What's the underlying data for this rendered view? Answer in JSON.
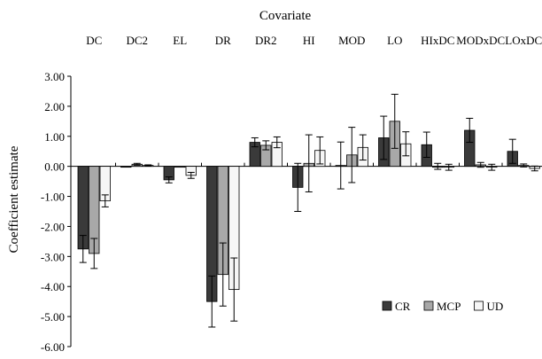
{
  "chart_data": {
    "type": "bar",
    "title": "Covariate",
    "ylabel": "Coefficient estimate",
    "ylim": [
      -6.0,
      3.0
    ],
    "ytick_step": 1.0,
    "yticks": [
      "3.00",
      "2.00",
      "1.00",
      "0.00",
      "-1.00",
      "-2.00",
      "-3.00",
      "-4.00",
      "-5.00",
      "-6.00"
    ],
    "categories": [
      "DC",
      "DC2",
      "EL",
      "DR",
      "DR2",
      "HI",
      "MOD",
      "LO",
      "HIxDC",
      "MODxDC",
      "LOxDC"
    ],
    "error_bars": true,
    "legend_position": "bottom-right",
    "series": [
      {
        "name": "CR",
        "color": "#3a3a3a",
        "values": [
          -2.75,
          0.0,
          -0.45,
          -4.5,
          0.8,
          -0.7,
          0.03,
          0.95,
          0.72,
          1.2,
          0.5
        ],
        "errors": [
          0.45,
          0.0,
          0.1,
          0.85,
          0.15,
          0.8,
          0.78,
          0.72,
          0.42,
          0.4,
          0.4
        ]
      },
      {
        "name": "MCP",
        "color": "#a8a8a8",
        "values": [
          -2.9,
          0.07,
          0.0,
          -3.6,
          0.7,
          0.1,
          0.38,
          1.5,
          0.0,
          0.05,
          0.03
        ],
        "errors": [
          0.5,
          0.03,
          0.0,
          1.05,
          0.15,
          0.95,
          0.92,
          0.9,
          0.1,
          0.08,
          0.05
        ]
      },
      {
        "name": "UD",
        "color": "#f6f6f6",
        "values": [
          -1.15,
          0.03,
          -0.3,
          -4.1,
          0.8,
          0.53,
          0.63,
          0.75,
          -0.03,
          -0.03,
          -0.07
        ],
        "errors": [
          0.2,
          0.02,
          0.1,
          1.05,
          0.18,
          0.45,
          0.42,
          0.4,
          0.1,
          0.1,
          0.08
        ]
      }
    ]
  }
}
